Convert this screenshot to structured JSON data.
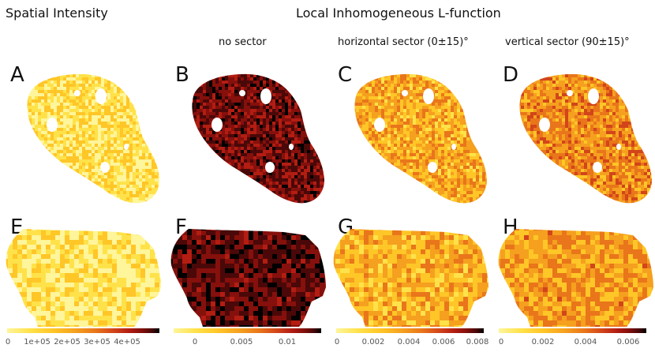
{
  "headers": {
    "left_title": "Spatial Intensity",
    "right_title": "Local Inhomogeneous L-function",
    "sub_no_sector": "no sector",
    "sub_horizontal": "horizontal sector (0±15)°",
    "sub_vertical": "vertical sector (90±15)°"
  },
  "panels": [
    {
      "label": "A",
      "column": "intensity",
      "row": 1,
      "palette_level": 0.15
    },
    {
      "label": "B",
      "column": "no_sector",
      "row": 1,
      "palette_level": 0.78
    },
    {
      "label": "C",
      "column": "horizontal",
      "row": 1,
      "palette_level": 0.32
    },
    {
      "label": "D",
      "column": "vertical",
      "row": 1,
      "palette_level": 0.4
    },
    {
      "label": "E",
      "column": "intensity",
      "row": 2,
      "palette_level": 0.13
    },
    {
      "label": "F",
      "column": "no_sector",
      "row": 2,
      "palette_level": 0.82
    },
    {
      "label": "G",
      "column": "horizontal",
      "row": 2,
      "palette_level": 0.3
    },
    {
      "label": "H",
      "column": "vertical",
      "row": 2,
      "palette_level": 0.36
    }
  ],
  "colorbars": [
    {
      "name": "intensity",
      "ticks": [
        "0",
        "1e+05",
        "2e+05",
        "3e+05",
        "4e+05"
      ]
    },
    {
      "name": "no_sector",
      "ticks": [
        "0",
        "0.005",
        "0.01"
      ]
    },
    {
      "name": "horizontal",
      "ticks": [
        "0",
        "0.002",
        "0.004",
        "0.006",
        "0.008"
      ]
    },
    {
      "name": "vertical",
      "ticks": [
        "0",
        "0.002",
        "0.004",
        "0.006"
      ]
    }
  ],
  "colors": {
    "palette": [
      "#fff59a",
      "#ffe24a",
      "#ffc627",
      "#f5a01f",
      "#e9761a",
      "#d2451a",
      "#b31d12",
      "#86100c",
      "#4a0808",
      "#000000"
    ]
  }
}
